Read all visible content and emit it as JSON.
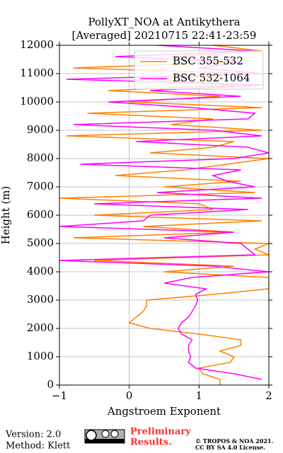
{
  "chart_data": {
    "type": "line",
    "title": [
      "PollyXT_NOA at Antikythera",
      "[Averaged] 20210715 22:41-23:59"
    ],
    "xlabel": "Angstroem Exponent",
    "ylabel": "Height (m)",
    "xlim": [
      -1,
      2
    ],
    "ylim": [
      0,
      12000
    ],
    "xticks": [
      {
        "value": -1,
        "label": "−1"
      },
      0,
      1,
      2
    ],
    "yticks": [
      0,
      1000,
      2000,
      3000,
      4000,
      5000,
      6000,
      7000,
      8000,
      9000,
      10000,
      11000,
      12000
    ],
    "grid": true,
    "legend": "upper right",
    "y": [
      0,
      200,
      400,
      600,
      800,
      1000,
      1200,
      1400,
      1600,
      1800,
      2000,
      2200,
      2400,
      2600,
      2800,
      3000,
      3200,
      3400,
      3600,
      3800,
      4000,
      4200,
      4400,
      4600,
      4800,
      5000,
      5200,
      5400,
      5600,
      5800,
      6000,
      6200,
      6400,
      6600,
      6800,
      7000,
      7200,
      7400,
      7600,
      7800,
      8000,
      8200,
      8400,
      8600,
      8800,
      9000,
      9200,
      9400,
      9600,
      9800,
      10000,
      10200,
      10400,
      10600,
      10800,
      11000,
      11200,
      11400,
      11600,
      11800,
      12000
    ],
    "series": [
      {
        "name": "BSC 355-532",
        "color": "#ff8000",
        "values": [
          1.3,
          1.3,
          1.05,
          1.0,
          1.45,
          1.5,
          1.3,
          1.6,
          1.6,
          1.0,
          0.3,
          0.0,
          0.1,
          0.2,
          0.25,
          0.25,
          1.2,
          2.0,
          2.0,
          2.0,
          0.5,
          1.5,
          -0.5,
          2.0,
          1.8,
          2.0,
          -0.8,
          1.5,
          0.2,
          1.9,
          -0.5,
          1.2,
          1.0,
          -1.0,
          1.8,
          0.5,
          1.6,
          -0.2,
          0.8,
          1.4,
          2.0,
          0.3,
          1.2,
          1.5,
          -0.9,
          1.9,
          0.6,
          1.2,
          -0.6,
          1.9,
          0.0,
          1.3,
          -0.3,
          1.5,
          0.4,
          1.8,
          -0.8,
          1.5,
          0.6,
          1.9,
          1.2
        ]
      },
      {
        "name": "BSC 532-1064",
        "color": "#ff00ff",
        "values": [
          null,
          1.9,
          1.5,
          0.95,
          0.85,
          0.88,
          0.85,
          0.85,
          0.9,
          0.75,
          0.7,
          0.75,
          0.85,
          0.9,
          0.95,
          0.98,
          0.95,
          1.1,
          0.5,
          0.9,
          2.0,
          1.2,
          -1.0,
          1.8,
          1.7,
          1.6,
          0.5,
          1.5,
          -1.0,
          0.2,
          0.3,
          1.7,
          -0.5,
          1.9,
          0.4,
          1.8,
          1.4,
          1.2,
          1.6,
          -0.7,
          1.5,
          2.0,
          1.7,
          0.1,
          1.9,
          1.2,
          -0.8,
          1.7,
          1.8,
          0.9,
          -0.3,
          1.6,
          0.3,
          1.9,
          -0.9,
          1.9,
          1.0,
          1.6,
          -0.2,
          1.8,
          0.4
        ]
      }
    ]
  },
  "footer": {
    "version": "Version: 2.0",
    "method": "Method: Klett",
    "preliminary": [
      "Preliminary",
      "Results."
    ],
    "copyright": [
      "© TROPOS & NOA 2021.",
      "CC BY SA 4.0 License."
    ]
  }
}
